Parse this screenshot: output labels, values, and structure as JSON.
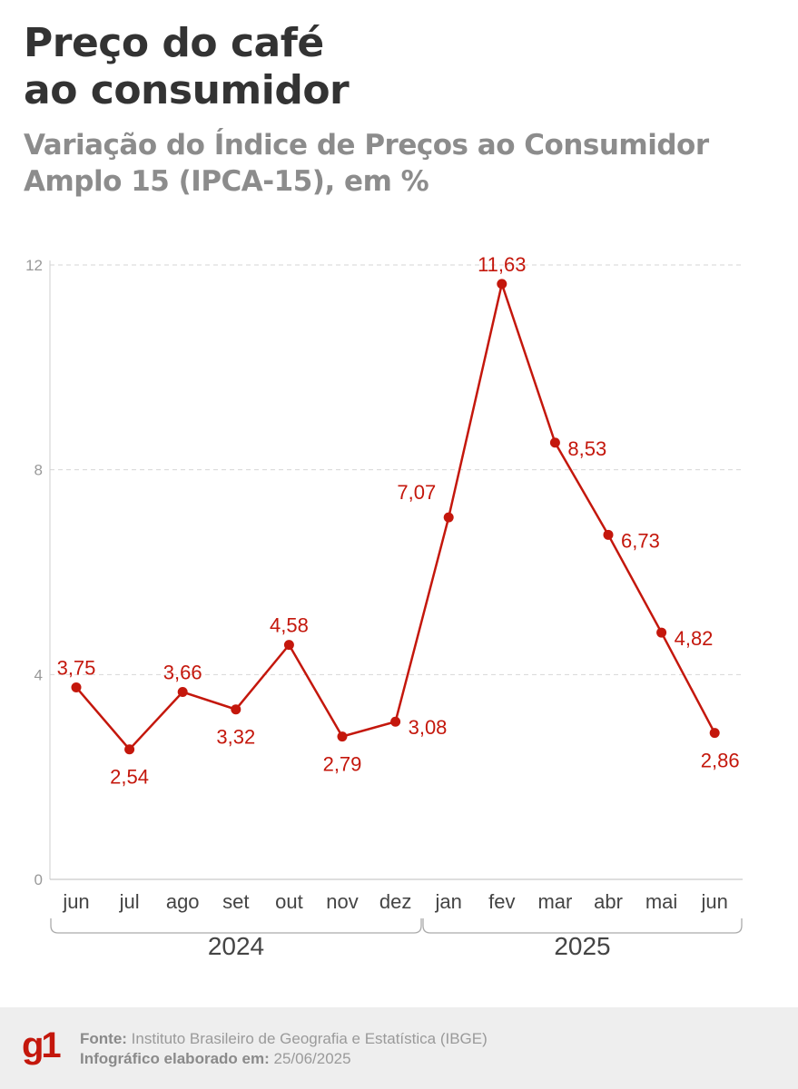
{
  "header": {
    "title_line1": "Preço do café",
    "title_line2": "ao consumidor",
    "subtitle": "Variação do Índice de Preços ao Consumidor Amplo 15 (IPCA-15), em %"
  },
  "chart_data": {
    "type": "line",
    "title": "Preço do café ao consumidor",
    "subtitle": "Variação do Índice de Preços ao Consumidor Amplo 15 (IPCA-15), em %",
    "categories": [
      "jun",
      "jul",
      "ago",
      "set",
      "out",
      "nov",
      "dez",
      "jan",
      "fev",
      "mar",
      "abr",
      "mai",
      "jun"
    ],
    "groups": [
      {
        "label": "2024",
        "from": 0,
        "to": 6
      },
      {
        "label": "2025",
        "from": 7,
        "to": 12
      }
    ],
    "values": [
      3.75,
      2.54,
      3.66,
      3.32,
      4.58,
      2.79,
      3.08,
      7.07,
      11.63,
      8.53,
      6.73,
      4.82,
      2.86
    ],
    "value_labels": [
      "3,75",
      "2,54",
      "3,66",
      "3,32",
      "4,58",
      "2,79",
      "3,08",
      "7,07",
      "11,63",
      "8,53",
      "6,73",
      "4,82",
      "2,86"
    ],
    "yticks": [
      0,
      4,
      8,
      12
    ],
    "ylim": [
      0,
      12
    ],
    "grid": true,
    "line_color": "#c4170c"
  },
  "footer": {
    "logo": "g1",
    "source_label": "Fonte:",
    "source": "Instituto Brasileiro de Geografia e Estatística (IBGE)",
    "date_label": "Infográfico elaborado em:",
    "date": "25/06/2025"
  }
}
